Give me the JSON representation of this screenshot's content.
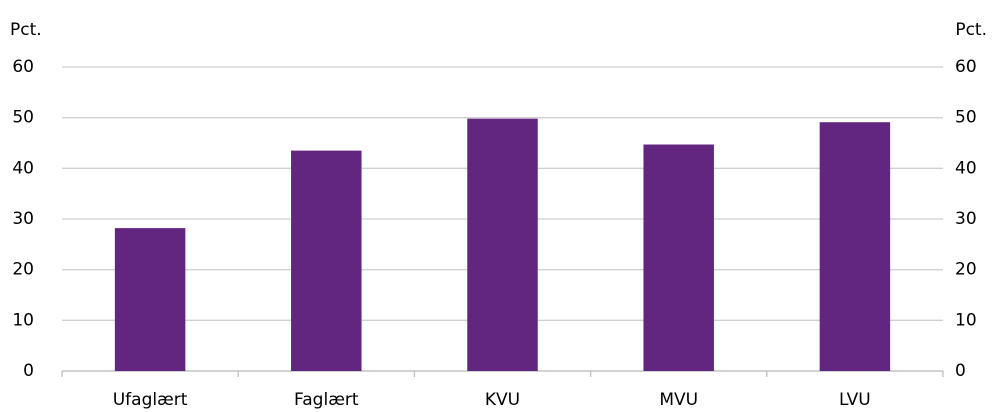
{
  "chart_data": {
    "type": "bar",
    "ylabel": "Pct.",
    "y2label": "Pct.",
    "categories": [
      "Ufaglært",
      "Faglært",
      "KVU",
      "MVU",
      "LVU"
    ],
    "values": [
      28.2,
      43.5,
      49.8,
      44.7,
      49.1
    ],
    "color": "#622580",
    "ylim": [
      0,
      60
    ],
    "yticks": [
      0,
      10,
      20,
      30,
      40,
      50,
      60
    ],
    "y2lim": [
      0,
      60
    ],
    "y2ticks": [
      0,
      10,
      20,
      30,
      40,
      50,
      60
    ],
    "grid": true
  }
}
